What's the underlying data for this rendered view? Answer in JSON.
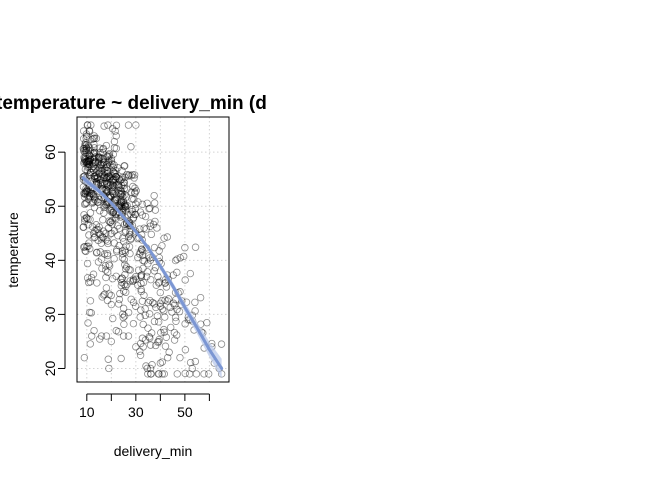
{
  "chart_data": {
    "type": "scatter",
    "title": "temperature ~ delivery_min (d.",
    "xlabel": "delivery_min",
    "ylabel": "temperature",
    "xlim": [
      6.0,
      68.0
    ],
    "ylim": [
      17.5,
      66.5
    ],
    "xticks": [
      10,
      20,
      30,
      40,
      50,
      60
    ],
    "xtick_labels": [
      "10",
      "",
      "30",
      "",
      "50",
      ""
    ],
    "yticks": [
      20,
      30,
      40,
      50,
      60
    ],
    "ytick_labels": [
      "20",
      "30",
      "40",
      "50",
      "60"
    ],
    "grid": true,
    "points": {
      "marker": "open-circle",
      "color": "#000000",
      "opacity": 0.45
    },
    "clusters": [
      {
        "x_mean": 18,
        "x_sd": 7,
        "x_min": 8.5,
        "x_max": 40,
        "y_intercept": 61.5,
        "y_slope": -0.36,
        "y_sd": 3.5,
        "n": 340
      },
      {
        "x_mean": 28,
        "x_sd": 14,
        "x_min": 8.5,
        "x_max": 66,
        "y_intercept": 54.5,
        "y_slope": -0.45,
        "y_sd": 6.5,
        "n": 280
      },
      {
        "x_mean": 32,
        "x_sd": 16,
        "x_min": 8.5,
        "x_max": 66,
        "y_intercept": 45,
        "y_slope": -0.42,
        "y_sd": 8,
        "n": 120
      }
    ],
    "extra_points": [
      {
        "x": 9,
        "y": 22
      },
      {
        "x": 12,
        "y": 26
      },
      {
        "x": 16,
        "y": 26
      },
      {
        "x": 18,
        "y": 26
      },
      {
        "x": 20,
        "y": 25
      },
      {
        "x": 22,
        "y": 27
      },
      {
        "x": 25,
        "y": 26
      },
      {
        "x": 27,
        "y": 26
      },
      {
        "x": 19,
        "y": 20
      },
      {
        "x": 30,
        "y": 24
      },
      {
        "x": 33,
        "y": 24
      },
      {
        "x": 36,
        "y": 20
      },
      {
        "x": 40,
        "y": 21
      },
      {
        "x": 43,
        "y": 22
      },
      {
        "x": 48,
        "y": 22
      },
      {
        "x": 53,
        "y": 20
      },
      {
        "x": 62,
        "y": 21
      },
      {
        "x": 64,
        "y": 20
      },
      {
        "x": 65,
        "y": 19
      },
      {
        "x": 61,
        "y": 24
      },
      {
        "x": 27,
        "y": 65
      },
      {
        "x": 30,
        "y": 65
      },
      {
        "x": 28,
        "y": 61
      },
      {
        "x": 11,
        "y": 64
      },
      {
        "x": 13,
        "y": 63
      },
      {
        "x": 22,
        "y": 63
      }
    ],
    "trend": {
      "name": "",
      "color": "#7b96d3",
      "band_color": "#b9c8ea",
      "x": [
        8.5,
        10,
        15,
        20,
        25,
        30,
        35,
        40,
        45,
        50,
        55,
        60,
        65
      ],
      "y": [
        55.2,
        54.6,
        52.8,
        50.6,
        48.0,
        45.3,
        42.3,
        38.9,
        35.3,
        31.3,
        27.5,
        23.5,
        20.0
      ],
      "band": [
        0.9,
        0.7,
        0.5,
        0.4,
        0.4,
        0.4,
        0.5,
        0.6,
        0.7,
        0.9,
        1.1,
        1.4,
        1.8
      ]
    }
  }
}
